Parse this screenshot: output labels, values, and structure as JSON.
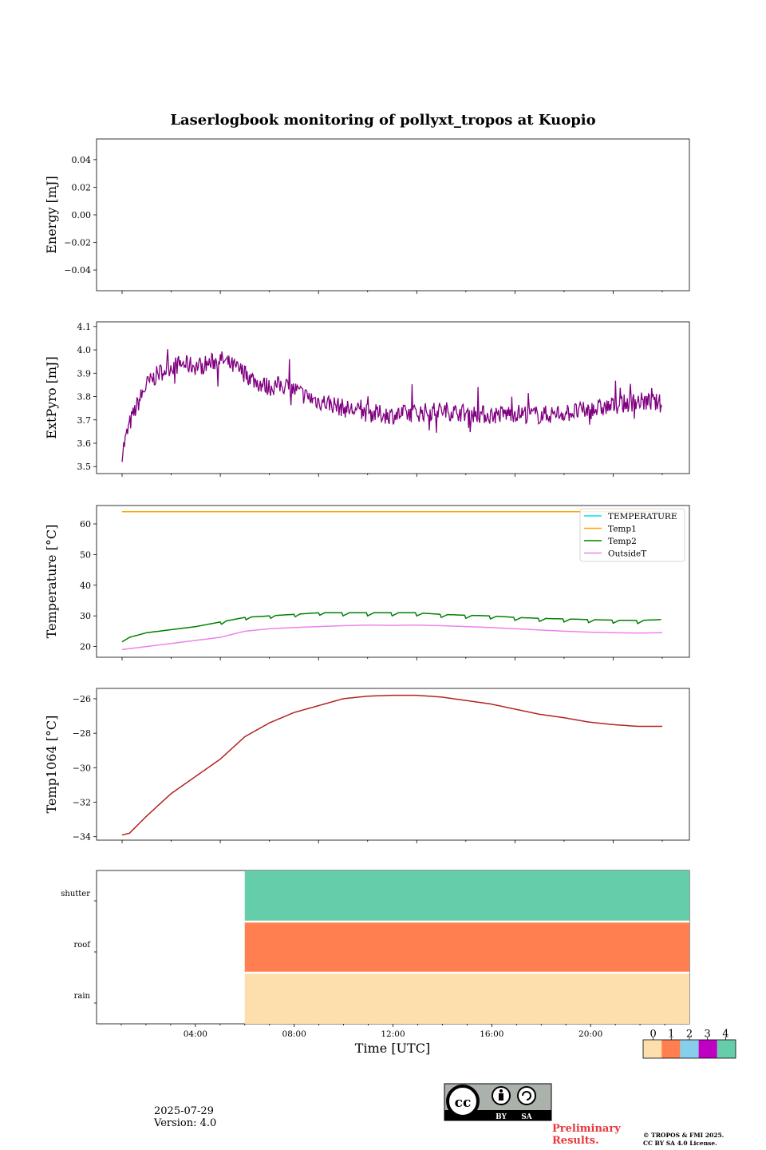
{
  "title": "Laserlogbook monitoring of pollyxt_tropos at Kuopio",
  "footer": {
    "date": "2025-07-29",
    "version": "Version: 4.0",
    "preliminary": [
      "Preliminary",
      "Results."
    ],
    "copyright": [
      "© TROPOS & FMI 2025.",
      "CC BY SA 4.0 License."
    ],
    "license_badge": {
      "by": "BY",
      "sa": "SA",
      "icon": "cc-by-sa-icon"
    }
  },
  "colors": {
    "extpyro": "#800080",
    "TEMPERATURE": "#00e5ee",
    "Temp1": "#ffa500",
    "Temp2": "#008000",
    "OutsideT": "#ee82ee",
    "temp1064": "#b22222",
    "status": [
      "#fddfae",
      "#ff7f50",
      "#87ceeb",
      "#c000c0",
      "#66cdaa"
    ],
    "prelim": "#e8383d"
  },
  "chart_data": [
    {
      "type": "line",
      "ylabel": "Energy [mJ]",
      "ylim": [
        -0.055,
        0.055
      ],
      "yticks": [
        0.04,
        0.02,
        0.0,
        -0.02,
        -0.04
      ],
      "ytick_labels": [
        "0.04",
        "0.02",
        "0.00",
        "−0.02",
        "−0.04"
      ],
      "series": []
    },
    {
      "type": "line",
      "ylabel": "ExtPyro [mJ]",
      "x_range_hours": [
        0.9,
        23.1
      ],
      "ylim": [
        3.47,
        4.12
      ],
      "yticks": [
        3.5,
        3.6,
        3.7,
        3.8,
        3.9,
        4.0,
        4.1
      ],
      "ytick_labels": [
        "3.5",
        "3.6",
        "3.7",
        "3.8",
        "3.9",
        "4.0",
        "4.1"
      ],
      "series": [
        {
          "x": [
            1.0,
            1.1,
            1.3,
            1.6,
            2.0,
            2.5,
            3.0,
            3.5,
            4.0,
            4.5,
            5.0,
            5.5,
            6.0,
            6.5,
            7.0,
            7.5,
            8.0,
            8.5,
            9.0,
            9.5,
            10.0,
            11.0,
            12.0,
            13.0,
            14.0,
            15.0,
            16.0,
            17.0,
            18.0,
            19.0,
            20.0,
            21.0,
            22.0,
            23.0
          ],
          "y": [
            3.56,
            3.6,
            3.68,
            3.76,
            3.85,
            3.9,
            3.93,
            3.94,
            3.93,
            3.94,
            3.96,
            3.93,
            3.9,
            3.86,
            3.84,
            3.85,
            3.83,
            3.8,
            3.78,
            3.77,
            3.75,
            3.73,
            3.72,
            3.73,
            3.74,
            3.73,
            3.72,
            3.73,
            3.72,
            3.73,
            3.74,
            3.76,
            3.78,
            3.77
          ],
          "noise": 0.04
        }
      ]
    },
    {
      "type": "line",
      "ylabel": "Temperature [°C]",
      "x_range_hours": [
        0.9,
        23.1
      ],
      "ylim": [
        16.5,
        66
      ],
      "yticks": [
        20,
        30,
        40,
        50,
        60
      ],
      "ytick_labels": [
        "20",
        "30",
        "40",
        "50",
        "60"
      ],
      "legend": {
        "placement": "top-right",
        "entries": [
          "TEMPERATURE",
          "Temp1",
          "Temp2",
          "OutsideT"
        ]
      },
      "series": [
        {
          "name": "Temp1",
          "x": [
            1.0,
            23.0
          ],
          "y": [
            64,
            64
          ]
        },
        {
          "name": "Temp2",
          "x": [
            1.0,
            1.3,
            2.0,
            3.0,
            4.0,
            5.0,
            6.0,
            7.0,
            8.0,
            9.0,
            10.0,
            11.0,
            12.0,
            13.0,
            14.0,
            15.0,
            16.0,
            17.0,
            18.0,
            19.0,
            20.0,
            21.0,
            22.0,
            23.0
          ],
          "y": [
            21.5,
            23,
            24.5,
            25.5,
            26.5,
            28,
            29.5,
            30,
            30.5,
            31,
            31,
            31,
            31,
            31,
            30.5,
            30.2,
            30,
            29.5,
            29.2,
            29,
            28.8,
            28.6,
            28.5,
            28.8
          ],
          "sawtooth": 1.0
        },
        {
          "name": "OutsideT",
          "x": [
            1.0,
            2.0,
            3.0,
            4.0,
            5.0,
            6.0,
            7.0,
            8.0,
            9.0,
            10.0,
            11.0,
            12.0,
            13.0,
            14.0,
            15.0,
            16.0,
            17.0,
            18.0,
            19.0,
            20.0,
            21.0,
            22.0,
            23.0
          ],
          "y": [
            19,
            20,
            21,
            22,
            23,
            25,
            25.8,
            26.2,
            26.5,
            26.8,
            27,
            26.9,
            27,
            26.8,
            26.5,
            26.2,
            25.8,
            25.4,
            25,
            24.7,
            24.5,
            24.4,
            24.5
          ]
        }
      ]
    },
    {
      "type": "line",
      "ylabel": "Temp1064 [°C]",
      "x_range_hours": [
        0.9,
        23.1
      ],
      "ylim": [
        -34.2,
        -25.4
      ],
      "yticks": [
        -26,
        -28,
        -30,
        -32,
        -34
      ],
      "ytick_labels": [
        "−26",
        "−28",
        "−30",
        "−32",
        "−34"
      ],
      "series": [
        {
          "x": [
            1.0,
            1.3,
            2.0,
            3.0,
            4.0,
            5.0,
            6.0,
            7.0,
            8.0,
            9.0,
            10.0,
            11.0,
            12.0,
            13.0,
            14.0,
            15.0,
            16.0,
            17.0,
            18.0,
            19.0,
            20.0,
            21.0,
            22.0,
            23.0
          ],
          "y": [
            -33.9,
            -33.8,
            -32.8,
            -31.5,
            -30.5,
            -29.5,
            -28.2,
            -27.4,
            -26.8,
            -26.4,
            -26.0,
            -25.85,
            -25.8,
            -25.8,
            -25.9,
            -26.1,
            -26.3,
            -26.6,
            -26.9,
            -27.1,
            -27.35,
            -27.5,
            -27.6,
            -27.6
          ]
        }
      ]
    },
    {
      "type": "heatmap",
      "rows": [
        "shutter",
        "roof",
        "rain"
      ],
      "row_status": [
        4,
        1,
        0
      ],
      "data_start_hour": 6.0,
      "x_range_hours": [
        0.0,
        24.0
      ],
      "xticks_hours": [
        4,
        8,
        12,
        16,
        20
      ],
      "xtick_labels": [
        "04:00",
        "08:00",
        "12:00",
        "16:00",
        "20:00"
      ],
      "xlabel": "Time [UTC]",
      "colorbar": {
        "ticks": [
          "0",
          "1",
          "2",
          "3",
          "4"
        ]
      }
    }
  ]
}
